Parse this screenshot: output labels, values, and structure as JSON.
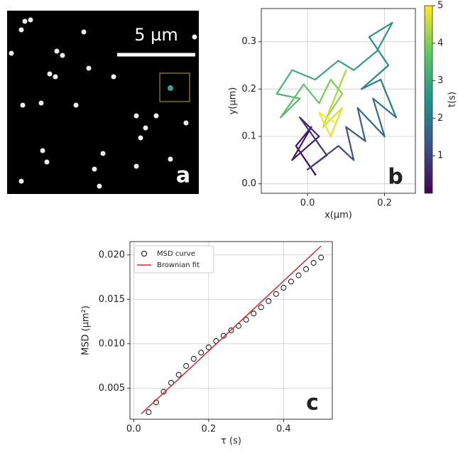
{
  "chart_data": [
    {
      "type": "image",
      "scale_bar_label": "5 µm",
      "panel_label": "a"
    },
    {
      "type": "trajectory",
      "panel_label": "b",
      "x_label": "x(µm)",
      "y_label": "y(µm)",
      "colorbar_label": "t(s)",
      "colormap": "viridis",
      "series": [
        {
          "x": [
            0.02,
            -0.03,
            0.01,
            -0.04,
            0.03,
            -0.02,
            0.05,
            0.0,
            0.08,
            0.12,
            0.1,
            0.15,
            0.13,
            0.2,
            0.17,
            0.23,
            0.19,
            0.14,
            0.21,
            0.16,
            0.22,
            0.18,
            0.12,
            0.08,
            0.02,
            -0.04,
            -0.08,
            -0.02,
            -0.07,
            -0.01,
            0.03,
            0.06,
            0.09,
            0.05,
            0.1,
            0.07,
            0.04,
            0.09,
            0.06,
            0.03,
            0.07
          ],
          "values": [
            0.02,
            0.08,
            0.12,
            0.05,
            0.1,
            0.14,
            0.06,
            0.03,
            0.08,
            0.05,
            0.12,
            0.09,
            0.16,
            0.1,
            0.18,
            0.14,
            0.22,
            0.2,
            0.25,
            0.31,
            0.34,
            0.28,
            0.24,
            0.26,
            0.22,
            0.24,
            0.19,
            0.18,
            0.14,
            0.21,
            0.17,
            0.22,
            0.19,
            0.14,
            0.24,
            0.18,
            0.12,
            0.16,
            0.1,
            0.15,
            0.13
          ],
          "t": [
            0,
            0.125,
            0.25,
            0.375,
            0.5,
            0.625,
            0.75,
            0.875,
            1,
            1.125,
            1.25,
            1.375,
            1.5,
            1.625,
            1.75,
            1.875,
            2,
            2.125,
            2.25,
            2.375,
            2.5,
            2.625,
            2.75,
            2.875,
            3,
            3.125,
            3.25,
            3.375,
            3.5,
            3.625,
            3.75,
            3.875,
            4,
            4.125,
            4.25,
            4.375,
            4.5,
            4.625,
            4.75,
            4.875,
            5
          ]
        }
      ],
      "xlim": [
        -0.12,
        0.28
      ],
      "xticks": [
        {
          "value": 0,
          "label": "0.0"
        },
        {
          "value": 0.2,
          "label": "0.2"
        }
      ],
      "ylim": [
        -0.02,
        0.37
      ],
      "yticks": [
        {
          "value": 0,
          "label": "0.0"
        },
        0.1,
        0.2,
        0.3
      ],
      "clim": [
        0,
        5
      ],
      "cticks": [
        1,
        2,
        3,
        4,
        5
      ],
      "grid": true
    },
    {
      "type": "scatter",
      "panel_label": "c",
      "x_label": "τ (s)",
      "y_label": "MSD (µm²)",
      "legend": "upper left",
      "series": [
        {
          "name": "MSD curve",
          "color": "#000000",
          "x": [
            0.04,
            0.06,
            0.08,
            0.1,
            0.12,
            0.14,
            0.16,
            0.18,
            0.2,
            0.22,
            0.24,
            0.26,
            0.28,
            0.3,
            0.32,
            0.34,
            0.36,
            0.38,
            0.4,
            0.42,
            0.44,
            0.46,
            0.48,
            0.5
          ],
          "values": [
            0.0023,
            0.0034,
            0.0046,
            0.0056,
            0.0065,
            0.0075,
            0.0083,
            0.009,
            0.0096,
            0.0103,
            0.0109,
            0.0115,
            0.012,
            0.0127,
            0.0134,
            0.0141,
            0.0148,
            0.0156,
            0.0163,
            0.017,
            0.0177,
            0.0184,
            0.0191,
            0.0197
          ]
        },
        {
          "name": "Brownian fit",
          "color": "#d62728",
          "x": [
            0.02,
            0.5
          ],
          "values": [
            0.0021,
            0.021
          ]
        }
      ],
      "xlim": [
        -0.01,
        0.53
      ],
      "xticks": [
        {
          "value": 0,
          "label": "0.0"
        },
        0.2,
        0.4
      ],
      "ylim": [
        0.0015,
        0.0215
      ],
      "yticks": [
        0.005,
        {
          "value": 0.01,
          "label": "0.010"
        },
        0.015,
        {
          "value": 0.02,
          "label": "0.020"
        }
      ],
      "grid": true
    }
  ]
}
